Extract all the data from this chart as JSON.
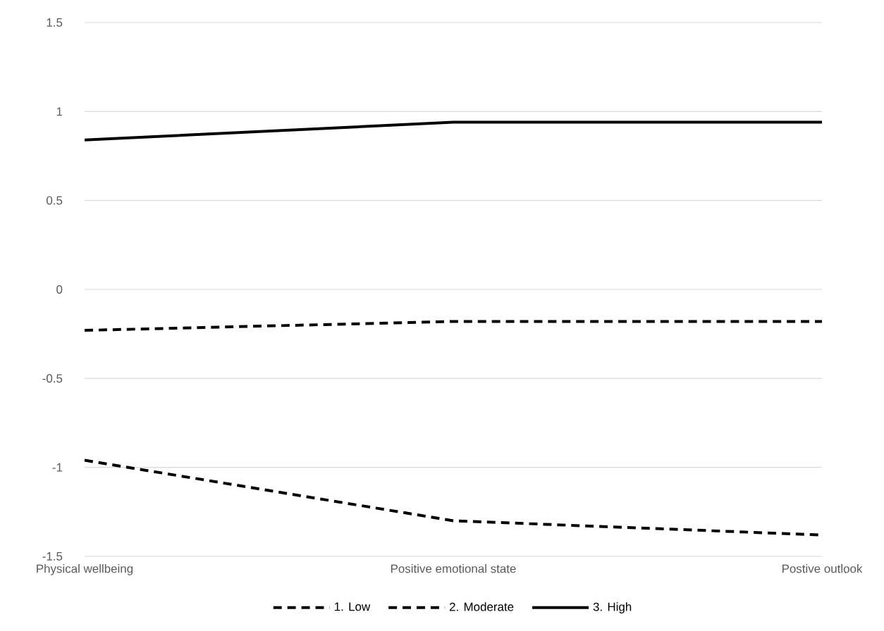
{
  "chart_data": {
    "type": "line",
    "categories": [
      "Physical wellbeing",
      "Positive emotional state",
      "Postive outlook"
    ],
    "series": [
      {
        "name": "1. Low",
        "color": "#000000",
        "line_style": "dashed",
        "values": [
          -0.96,
          -1.3,
          -1.38
        ]
      },
      {
        "name": "2. Moderate",
        "color": "#000000",
        "line_style": "dashed",
        "values": [
          -0.23,
          -0.18,
          -0.18
        ]
      },
      {
        "name": "3. High",
        "color": "#000000",
        "line_style": "solid",
        "values": [
          0.84,
          0.94,
          0.94
        ]
      }
    ],
    "ylim": [
      -1.5,
      1.5
    ],
    "yticks": [
      {
        "value": -1.5,
        "label": "-1.5"
      },
      {
        "value": -1,
        "label": "-1"
      },
      {
        "value": -0.5,
        "label": "-0.5"
      },
      0,
      0.5,
      1,
      1.5
    ],
    "grid": "y",
    "legend": "bottom"
  }
}
